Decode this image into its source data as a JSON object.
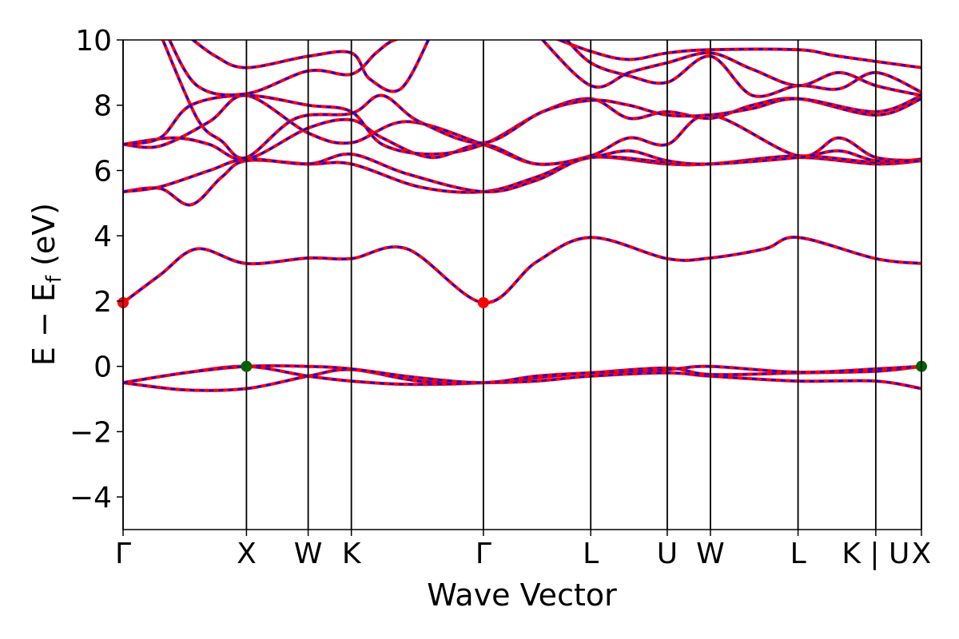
{
  "chart_data": {
    "type": "line",
    "xlabel": "Wave Vector",
    "ylabel_parts": [
      "E",
      " − E",
      "f",
      " (eV)"
    ],
    "ylim": [
      -5,
      10
    ],
    "yticks": [
      -4,
      -2,
      0,
      2,
      4,
      6,
      8,
      10
    ],
    "ytick_labels": [
      "−4",
      "−2",
      "0",
      "2",
      "4",
      "6",
      "8",
      "10"
    ],
    "xlim": [
      0,
      6.47
    ],
    "kpoints": [
      {
        "label": "Γ",
        "x": 0.0
      },
      {
        "label": "X",
        "x": 1.0
      },
      {
        "label": "W",
        "x": 1.5
      },
      {
        "label": "K",
        "x": 1.85
      },
      {
        "label": "Γ",
        "x": 2.92
      },
      {
        "label": "L",
        "x": 3.79
      },
      {
        "label": "U",
        "x": 4.41
      },
      {
        "label": "W",
        "x": 4.76
      },
      {
        "label": "L",
        "x": 5.47
      },
      {
        "label": "K | U",
        "x": 6.1
      },
      {
        "label": "X",
        "x": 6.47
      }
    ],
    "line_colors": {
      "main": "#ff0000",
      "dash": "#0000ff"
    },
    "bands": [
      {
        "name": "v1",
        "points": [
          [
            0.0,
            -0.5
          ],
          [
            0.5,
            -0.72
          ],
          [
            1.0,
            -0.68
          ],
          [
            1.5,
            -0.3
          ],
          [
            1.85,
            -0.1
          ],
          [
            2.4,
            -0.45
          ],
          [
            2.92,
            -0.5
          ],
          [
            3.35,
            -0.45
          ],
          [
            3.79,
            -0.3
          ],
          [
            4.41,
            -0.2
          ],
          [
            4.76,
            -0.3
          ],
          [
            5.47,
            -0.45
          ],
          [
            6.1,
            -0.45
          ],
          [
            6.47,
            -0.68
          ]
        ]
      },
      {
        "name": "v2",
        "points": [
          [
            0.0,
            -0.5
          ],
          [
            0.5,
            -0.2
          ],
          [
            1.0,
            0.0
          ],
          [
            1.5,
            -0.3
          ],
          [
            1.85,
            -0.45
          ],
          [
            2.3,
            -0.55
          ],
          [
            2.92,
            -0.5
          ],
          [
            3.35,
            -0.35
          ],
          [
            3.79,
            -0.2
          ],
          [
            4.41,
            -0.05
          ],
          [
            4.76,
            -0.25
          ],
          [
            5.47,
            -0.2
          ],
          [
            6.1,
            -0.15
          ],
          [
            6.47,
            0.0
          ]
        ]
      },
      {
        "name": "v3",
        "points": [
          [
            0.0,
            -0.5
          ],
          [
            0.5,
            -0.2
          ],
          [
            1.0,
            0.0
          ],
          [
            1.5,
            0.0
          ],
          [
            1.85,
            -0.08
          ],
          [
            2.4,
            -0.35
          ],
          [
            2.92,
            -0.5
          ],
          [
            3.35,
            -0.3
          ],
          [
            3.79,
            -0.2
          ],
          [
            4.41,
            -0.1
          ],
          [
            4.76,
            0.0
          ],
          [
            5.47,
            -0.18
          ],
          [
            6.1,
            -0.08
          ],
          [
            6.47,
            0.0
          ]
        ]
      },
      {
        "name": "c1",
        "points": [
          [
            0.0,
            1.95
          ],
          [
            0.3,
            2.8
          ],
          [
            0.6,
            3.6
          ],
          [
            1.0,
            3.15
          ],
          [
            1.5,
            3.32
          ],
          [
            1.85,
            3.3
          ],
          [
            2.3,
            3.6
          ],
          [
            2.92,
            1.95
          ],
          [
            3.35,
            3.2
          ],
          [
            3.79,
            3.95
          ],
          [
            4.41,
            3.3
          ],
          [
            4.76,
            3.32
          ],
          [
            5.2,
            3.6
          ],
          [
            5.47,
            3.95
          ],
          [
            6.1,
            3.3
          ],
          [
            6.47,
            3.15
          ]
        ]
      },
      {
        "name": "c2",
        "points": [
          [
            0.0,
            5.35
          ],
          [
            0.3,
            5.45
          ],
          [
            0.55,
            4.95
          ],
          [
            0.8,
            5.8
          ],
          [
            1.0,
            6.3
          ],
          [
            1.5,
            6.2
          ],
          [
            1.85,
            6.2
          ],
          [
            2.4,
            5.5
          ],
          [
            2.92,
            5.35
          ],
          [
            3.35,
            5.8
          ],
          [
            3.79,
            6.4
          ],
          [
            4.41,
            6.2
          ],
          [
            4.76,
            6.2
          ],
          [
            5.47,
            6.4
          ],
          [
            6.1,
            6.2
          ],
          [
            6.47,
            6.3
          ]
        ]
      },
      {
        "name": "c3",
        "points": [
          [
            0.0,
            5.35
          ],
          [
            0.3,
            5.5
          ],
          [
            0.7,
            6.0
          ],
          [
            1.0,
            6.35
          ],
          [
            1.5,
            6.2
          ],
          [
            1.85,
            6.5
          ],
          [
            2.3,
            5.9
          ],
          [
            2.92,
            5.35
          ],
          [
            3.35,
            5.7
          ],
          [
            3.79,
            6.4
          ],
          [
            4.41,
            6.25
          ],
          [
            4.76,
            6.2
          ],
          [
            5.47,
            6.45
          ],
          [
            6.1,
            6.25
          ],
          [
            6.47,
            6.35
          ]
        ]
      },
      {
        "name": "c4",
        "points": [
          [
            0.0,
            6.8
          ],
          [
            0.3,
            6.75
          ],
          [
            0.7,
            7.5
          ],
          [
            1.0,
            8.3
          ],
          [
            1.5,
            7.15
          ],
          [
            1.85,
            6.85
          ],
          [
            2.3,
            7.5
          ],
          [
            2.92,
            6.8
          ],
          [
            3.35,
            6.2
          ],
          [
            3.79,
            6.45
          ],
          [
            4.1,
            7.0
          ],
          [
            4.41,
            6.8
          ],
          [
            4.76,
            7.7
          ],
          [
            5.47,
            6.45
          ],
          [
            5.8,
            7.0
          ],
          [
            6.1,
            6.4
          ],
          [
            6.47,
            6.3
          ]
        ]
      },
      {
        "name": "c5",
        "points": [
          [
            0.0,
            6.8
          ],
          [
            0.4,
            7.0
          ],
          [
            0.7,
            6.8
          ],
          [
            1.0,
            6.35
          ],
          [
            1.5,
            7.3
          ],
          [
            1.85,
            7.55
          ],
          [
            2.1,
            7.0
          ],
          [
            2.5,
            6.4
          ],
          [
            2.92,
            6.8
          ],
          [
            3.35,
            6.2
          ],
          [
            3.79,
            6.4
          ],
          [
            4.1,
            6.6
          ],
          [
            4.41,
            6.3
          ],
          [
            4.76,
            6.2
          ],
          [
            5.47,
            6.4
          ],
          [
            5.8,
            6.6
          ],
          [
            6.1,
            6.3
          ],
          [
            6.47,
            6.3
          ]
        ]
      },
      {
        "name": "c6",
        "points": [
          [
            0.0,
            6.8
          ],
          [
            0.3,
            7.0
          ],
          [
            0.55,
            8.0
          ],
          [
            1.0,
            8.3
          ],
          [
            1.5,
            8.0
          ],
          [
            1.85,
            7.8
          ],
          [
            2.1,
            6.8
          ],
          [
            2.5,
            6.5
          ],
          [
            2.92,
            6.8
          ],
          [
            3.4,
            7.8
          ],
          [
            3.79,
            8.2
          ],
          [
            4.1,
            7.6
          ],
          [
            4.41,
            7.8
          ],
          [
            4.76,
            7.6
          ],
          [
            5.1,
            8.0
          ],
          [
            5.47,
            8.2
          ],
          [
            6.1,
            7.7
          ],
          [
            6.47,
            8.2
          ]
        ]
      },
      {
        "name": "c7",
        "points": [
          [
            0.3,
            10.2
          ],
          [
            0.6,
            7.6
          ],
          [
            0.8,
            6.9
          ],
          [
            1.0,
            6.4
          ],
          [
            1.4,
            7.6
          ],
          [
            1.85,
            7.75
          ],
          [
            2.1,
            8.3
          ],
          [
            2.4,
            7.5
          ],
          [
            2.92,
            6.85
          ],
          [
            3.4,
            7.8
          ],
          [
            3.79,
            8.15
          ],
          [
            4.1,
            8.0
          ],
          [
            4.41,
            7.7
          ],
          [
            4.76,
            7.7
          ],
          [
            5.1,
            7.9
          ],
          [
            5.47,
            8.2
          ],
          [
            6.1,
            7.8
          ],
          [
            6.47,
            8.3
          ]
        ]
      },
      {
        "name": "c8",
        "points": [
          [
            0.5,
            10.2
          ],
          [
            0.75,
            9.5
          ],
          [
            1.0,
            9.15
          ],
          [
            1.5,
            9.5
          ],
          [
            1.85,
            9.6
          ],
          [
            2.0,
            8.8
          ],
          [
            2.25,
            8.5
          ],
          [
            2.5,
            10.2
          ]
        ]
      },
      {
        "name": "c9",
        "points": [
          [
            0.35,
            10.2
          ],
          [
            0.6,
            8.6
          ],
          [
            1.0,
            8.35
          ],
          [
            1.5,
            9.05
          ],
          [
            1.85,
            8.95
          ],
          [
            2.05,
            9.6
          ],
          [
            2.2,
            10.0
          ],
          [
            2.45,
            10.2
          ]
        ]
      },
      {
        "name": "c10",
        "points": [
          [
            3.35,
            10.2
          ],
          [
            3.79,
            8.6
          ],
          [
            4.1,
            9.0
          ],
          [
            4.41,
            9.3
          ],
          [
            4.76,
            9.6
          ],
          [
            5.1,
            9.1
          ],
          [
            5.47,
            8.6
          ],
          [
            5.8,
            9.0
          ],
          [
            6.1,
            8.6
          ],
          [
            6.47,
            8.3
          ]
        ]
      },
      {
        "name": "c11",
        "points": [
          [
            3.4,
            10.2
          ],
          [
            3.79,
            9.65
          ],
          [
            4.1,
            9.4
          ],
          [
            4.41,
            9.6
          ],
          [
            4.76,
            9.7
          ],
          [
            5.47,
            9.7
          ],
          [
            5.8,
            9.5
          ],
          [
            6.47,
            9.15
          ]
        ]
      },
      {
        "name": "c12",
        "points": [
          [
            3.55,
            10.2
          ],
          [
            3.79,
            9.3
          ],
          [
            4.1,
            8.9
          ],
          [
            4.41,
            8.7
          ],
          [
            4.76,
            9.5
          ],
          [
            5.1,
            8.3
          ],
          [
            5.47,
            8.6
          ],
          [
            5.8,
            8.5
          ],
          [
            6.1,
            9.0
          ],
          [
            6.47,
            8.4
          ]
        ]
      }
    ],
    "markers": [
      {
        "x": 0.0,
        "y": 1.95,
        "color": "#ff0000"
      },
      {
        "x": 2.92,
        "y": 1.95,
        "color": "#ff0000"
      },
      {
        "x": 1.0,
        "y": 0.0,
        "color": "#006400"
      },
      {
        "x": 6.47,
        "y": 0.0,
        "color": "#006400"
      }
    ]
  }
}
